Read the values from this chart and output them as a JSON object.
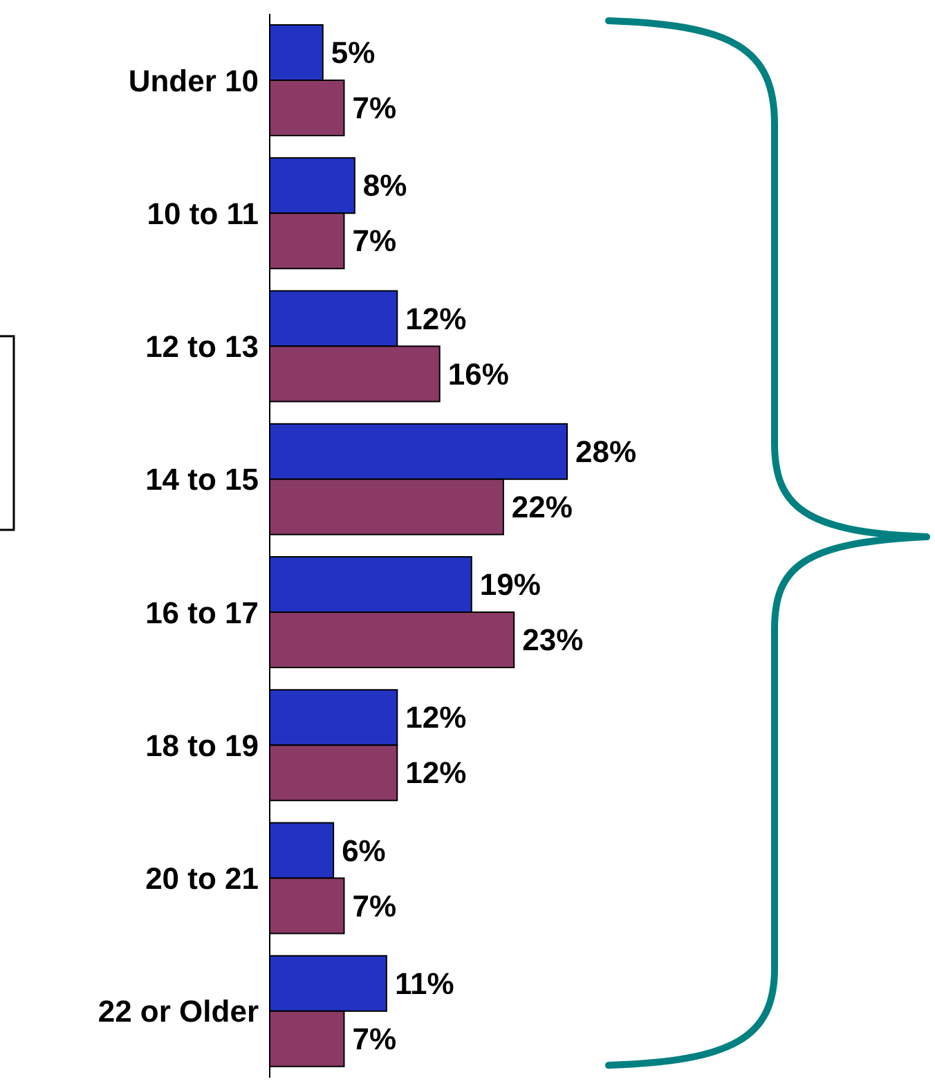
{
  "chart_data": {
    "type": "bar",
    "orientation": "horizontal",
    "categories": [
      "Under 10",
      "10 to 11",
      "12 to 13",
      "14 to 15",
      "16 to 17",
      "18 to 19",
      "20 to 21",
      "22 or Older"
    ],
    "series": [
      {
        "color": "#2233c4",
        "values": [
          5,
          8,
          12,
          28,
          19,
          12,
          6,
          11
        ],
        "value_labels": [
          "5%",
          "8%",
          "12%",
          "28%",
          "19%",
          "12%",
          "6%",
          "11%"
        ]
      },
      {
        "color": "#8b3a66",
        "values": [
          7,
          7,
          16,
          22,
          23,
          12,
          7,
          7
        ],
        "value_labels": [
          "7%",
          "7%",
          "16%",
          "22%",
          "23%",
          "12%",
          "7%",
          "7%"
        ]
      }
    ]
  }
}
